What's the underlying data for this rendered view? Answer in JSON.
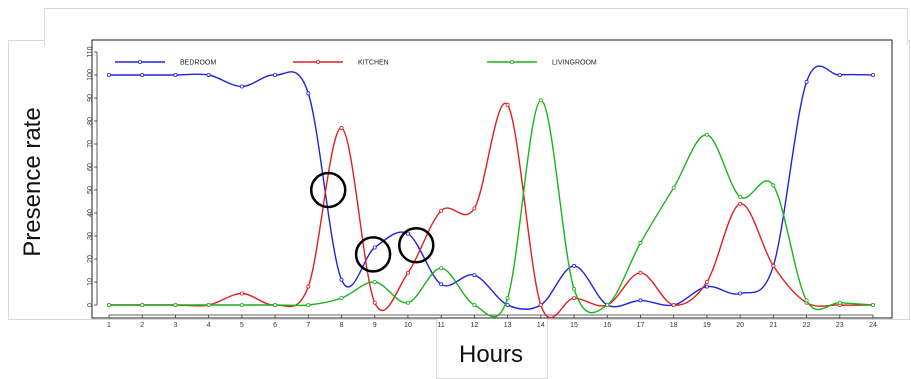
{
  "chart_data": {
    "type": "line",
    "xlabel": "Hours",
    "ylabel": "Presence rate",
    "x": [
      1,
      2,
      3,
      4,
      5,
      6,
      7,
      8,
      9,
      10,
      11,
      12,
      13,
      14,
      15,
      16,
      17,
      18,
      19,
      20,
      21,
      22,
      23,
      24
    ],
    "x_ticks": [
      "1",
      "2",
      "3",
      "4",
      "5",
      "6",
      "7",
      "8",
      "9",
      "10",
      "11",
      "12",
      "13",
      "14",
      "15",
      "16",
      "17",
      "18",
      "19",
      "20",
      "21",
      "22",
      "23",
      "24"
    ],
    "y_ticks": [
      "0",
      "10",
      "20",
      "30",
      "40",
      "50",
      "60",
      "70",
      "80",
      "90",
      "100",
      "110"
    ],
    "xlim": [
      1,
      24
    ],
    "ylim": [
      0,
      110
    ],
    "legend_position": "top",
    "series": [
      {
        "name": "BEDROOM",
        "color": "#2222dd",
        "values": [
          100,
          100,
          100,
          100,
          95,
          100,
          92,
          11,
          25,
          31,
          9,
          13,
          0,
          0,
          17,
          0,
          2,
          0,
          8,
          5,
          17,
          97,
          100,
          100
        ]
      },
      {
        "name": "KITCHEN",
        "color": "#e02020",
        "values": [
          0,
          0,
          0,
          0,
          5,
          0,
          8,
          77,
          1,
          14,
          41,
          42,
          87,
          0,
          3,
          0,
          14,
          0,
          10,
          44,
          17,
          1,
          0,
          0
        ]
      },
      {
        "name": "LIVINGROOM",
        "color": "#18b418",
        "values": [
          0,
          0,
          0,
          0,
          0,
          0,
          0,
          3,
          10,
          1,
          16,
          0,
          3,
          89,
          7,
          0,
          27,
          51,
          74,
          47,
          52,
          2,
          1,
          0
        ]
      }
    ],
    "annotations": [
      {
        "shape": "circle",
        "x": 7.6,
        "y": 50
      },
      {
        "shape": "circle",
        "x": 8.95,
        "y": 22
      },
      {
        "shape": "circle",
        "x": 10.25,
        "y": 26
      }
    ]
  }
}
